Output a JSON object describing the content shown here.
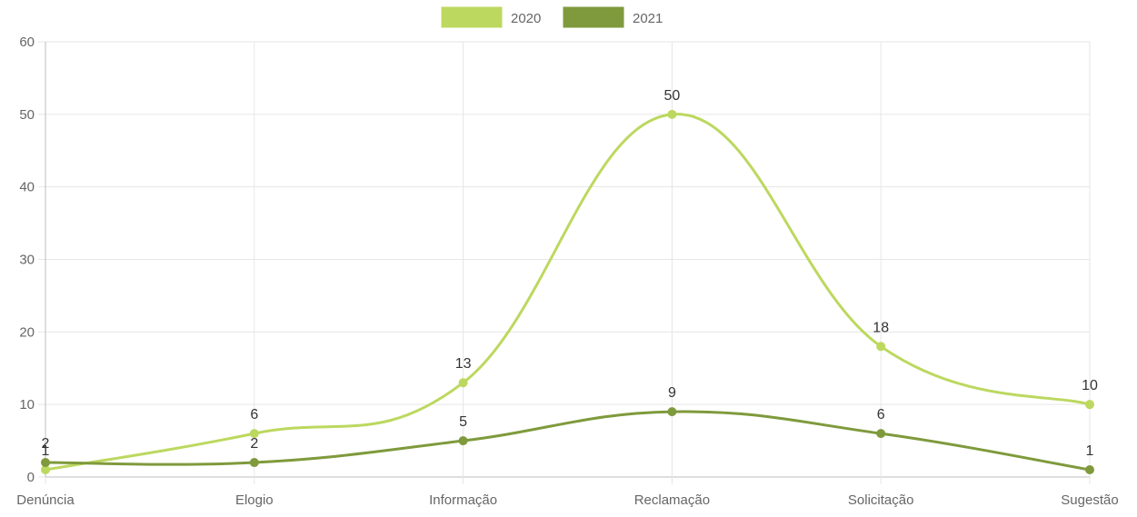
{
  "chart_data": {
    "type": "line",
    "categories": [
      "Denúncia",
      "Elogio",
      "Informação",
      "Reclamação",
      "Solicitação",
      "Sugestão"
    ],
    "series": [
      {
        "name": "2020",
        "values": [
          1,
          6,
          13,
          50,
          18,
          10
        ],
        "color": "#bcd85f",
        "labels": [
          "1",
          "6",
          "13",
          "50",
          "18",
          "10"
        ]
      },
      {
        "name": "2021",
        "values": [
          2,
          2,
          5,
          9,
          6,
          1
        ],
        "color": "#7f9a3c",
        "labels": [
          "2",
          "2",
          "5",
          "9",
          "6",
          "1"
        ]
      }
    ],
    "yticks": [
      "0",
      "10",
      "20",
      "30",
      "40",
      "50",
      "60"
    ],
    "ylim": [
      0,
      60
    ],
    "grid": true,
    "legend": "top-center",
    "smooth": true
  }
}
